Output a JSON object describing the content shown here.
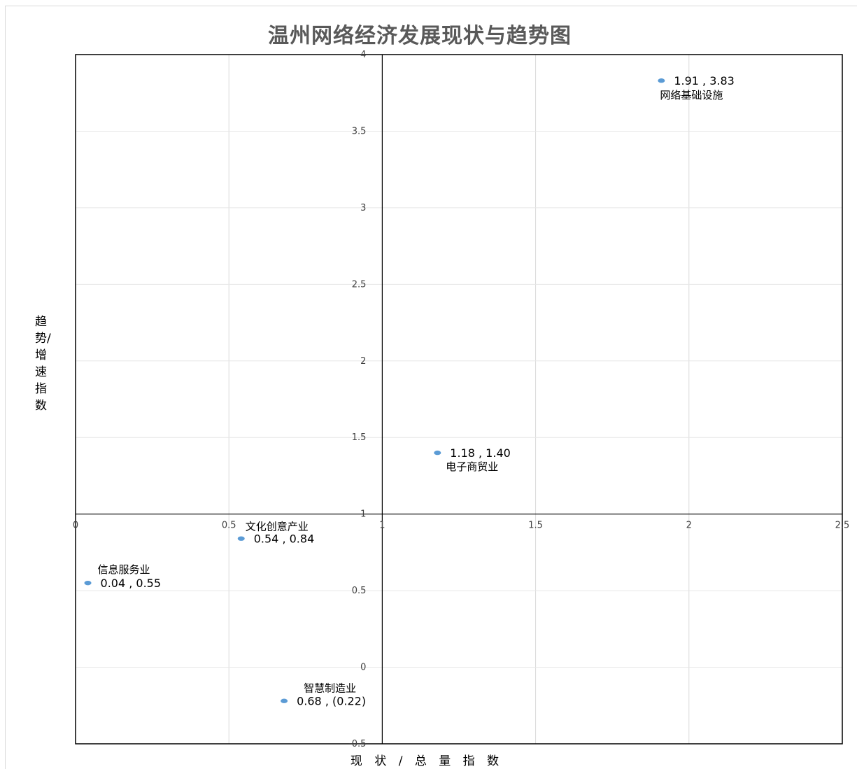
{
  "chart_data": {
    "type": "scatter",
    "title": "温州网络经济发展现状与趋势图",
    "xlabel": "现 状 / 总 量 指 数",
    "ylabel": "趋势/增速指数",
    "xlim": [
      0,
      2.5
    ],
    "ylim": [
      -0.5,
      4
    ],
    "x_axis_crosses_y_at": 1,
    "y_axis_crosses_x_at": 1,
    "grid": true,
    "x_ticks": [
      "0",
      "0.5",
      "1",
      "1.5",
      "2",
      "2.5"
    ],
    "y_ticks": [
      "-0.5",
      "0",
      "0.5",
      "1",
      "1.5",
      "2",
      "2.5",
      "3",
      "3.5",
      "4"
    ],
    "marker_color": "#5b9bd5",
    "points": [
      {
        "name": "网络基础设施",
        "x": 1.91,
        "y": 3.83,
        "label": "1.91 , 3.83"
      },
      {
        "name": "电子商贸业",
        "x": 1.18,
        "y": 1.4,
        "label": "1.18 , 1.40"
      },
      {
        "name": "文化创意产业",
        "x": 0.54,
        "y": 0.84,
        "label": "0.54 , 0.84"
      },
      {
        "name": "信息服务业",
        "x": 0.04,
        "y": 0.55,
        "label": "0.04 , 0.55"
      },
      {
        "name": "智慧制造业",
        "x": 0.68,
        "y": -0.22,
        "label": "0.68 , (0.22)"
      }
    ]
  }
}
